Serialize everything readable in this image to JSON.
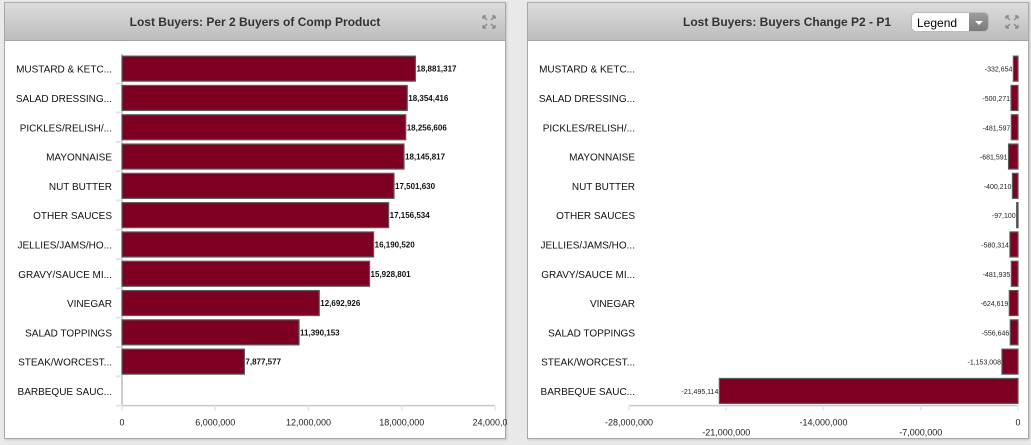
{
  "colors": {
    "bar": "#7d0022",
    "bar_border": "#5a5a5a",
    "axis": "#c8c8c8",
    "tick": "#dde6f0"
  },
  "panels": [
    {
      "title": "Lost Buyers: Per 2 Buyers of Comp Product",
      "expand_icon": "expand-arrows-icon",
      "has_legend_dropdown": false
    },
    {
      "title": "Lost Buyers: Buyers Change P2 - P1",
      "expand_icon": "expand-arrows-icon",
      "has_legend_dropdown": true,
      "legend_dropdown": {
        "selected": "Legend"
      }
    }
  ],
  "chart_data": [
    {
      "type": "bar",
      "orientation": "horizontal",
      "title": "Lost Buyers: Per 2 Buyers of Comp Product",
      "categories": [
        "MUSTARD & KETC...",
        "SALAD DRESSING...",
        "PICKLES/RELISH/...",
        "MAYONNAISE",
        "NUT BUTTER",
        "OTHER SAUCES",
        "JELLIES/JAMS/HO...",
        "GRAVY/SAUCE MI...",
        "VINEGAR",
        "SALAD TOPPINGS",
        "STEAK/WORCEST...",
        "BARBEQUE SAUC..."
      ],
      "values": [
        18881317,
        18354416,
        18256606,
        18145817,
        17501630,
        17156534,
        16190520,
        15928801,
        12692926,
        11390153,
        7877577,
        null
      ],
      "value_labels": [
        "18,881,317",
        "18,354,416",
        "18,256,606",
        "18,145,817",
        "17,501,630",
        "17,156,534",
        "16,190,520",
        "15,928,801",
        "12,692,926",
        "11,390,153",
        "7,877,577",
        ""
      ],
      "xlim": [
        0,
        24000000
      ],
      "xticks": [
        0,
        6000000,
        12000000,
        18000000,
        24000000
      ],
      "xtick_labels": [
        "0",
        "6,000,000",
        "12,000,000",
        "18,000,000",
        "24,000,000"
      ],
      "xlabel": "",
      "ylabel": "",
      "grid": false,
      "legend": "none"
    },
    {
      "type": "bar",
      "orientation": "horizontal",
      "title": "Lost Buyers: Buyers Change P2 - P1",
      "categories": [
        "MUSTARD & KETC...",
        "SALAD DRESSING...",
        "PICKLES/RELISH/...",
        "MAYONNAISE",
        "NUT BUTTER",
        "OTHER SAUCES",
        "JELLIES/JAMS/HO...",
        "GRAVY/SAUCE MI...",
        "VINEGAR",
        "SALAD TOPPINGS",
        "STEAK/WORCEST...",
        "BARBEQUE SAUC..."
      ],
      "values": [
        -332654,
        -500271,
        -481597,
        -681591,
        -400210,
        -97100,
        -580314,
        -481935,
        -624619,
        -556646,
        -1153008,
        -21495114
      ],
      "value_labels": [
        "-332,654",
        "-500,271",
        "-481,597",
        "-681,591",
        "-400,210",
        "-97,100",
        "-580,314",
        "-481,935",
        "-624,619",
        "-556,646",
        "-1,153,008",
        "-21,495,114"
      ],
      "xlim": [
        -28000000,
        0
      ],
      "xticks": [
        -28000000,
        -21000000,
        -14000000,
        -7000000,
        0
      ],
      "xtick_labels": [
        "-28,000,000",
        "-21,000,000",
        "-14,000,000",
        "-7,000,000",
        "0"
      ],
      "xlabel": "",
      "ylabel": "",
      "grid": false,
      "legend": "none"
    }
  ]
}
